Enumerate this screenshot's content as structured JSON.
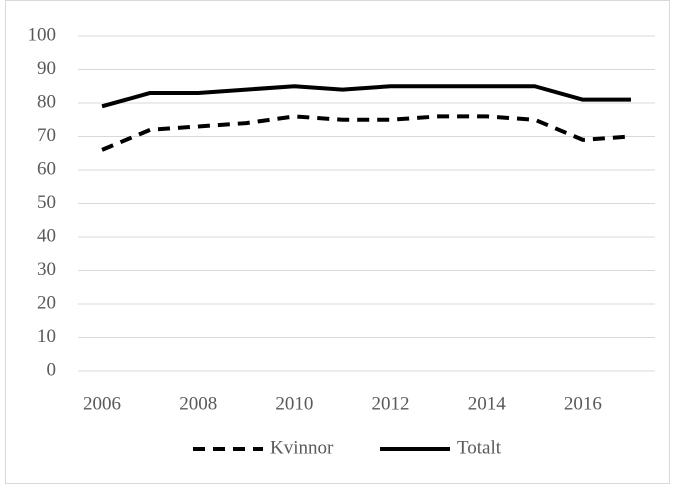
{
  "chart_data": {
    "type": "line",
    "x": [
      2006,
      2007,
      2008,
      2009,
      2010,
      2011,
      2012,
      2013,
      2014,
      2015,
      2016,
      2017
    ],
    "series": [
      {
        "name": "Kvinnor",
        "color": "#000000",
        "dash": true,
        "values": [
          66,
          72,
          73,
          74,
          76,
          75,
          75,
          76,
          76,
          75,
          69,
          70
        ]
      },
      {
        "name": "Totalt",
        "color": "#000000",
        "dash": false,
        "values": [
          79,
          83,
          83,
          84,
          85,
          84,
          85,
          85,
          85,
          85,
          81,
          81
        ]
      }
    ],
    "xlim": [
      2005.5,
      2017.5
    ],
    "xticks": [
      2006,
      2008,
      2010,
      2012,
      2014,
      2016
    ],
    "ylim": [
      0,
      100
    ],
    "yticks": [
      0,
      10,
      20,
      30,
      40,
      50,
      60,
      70,
      80,
      90,
      100
    ],
    "grid": true,
    "legend": "bottom"
  }
}
